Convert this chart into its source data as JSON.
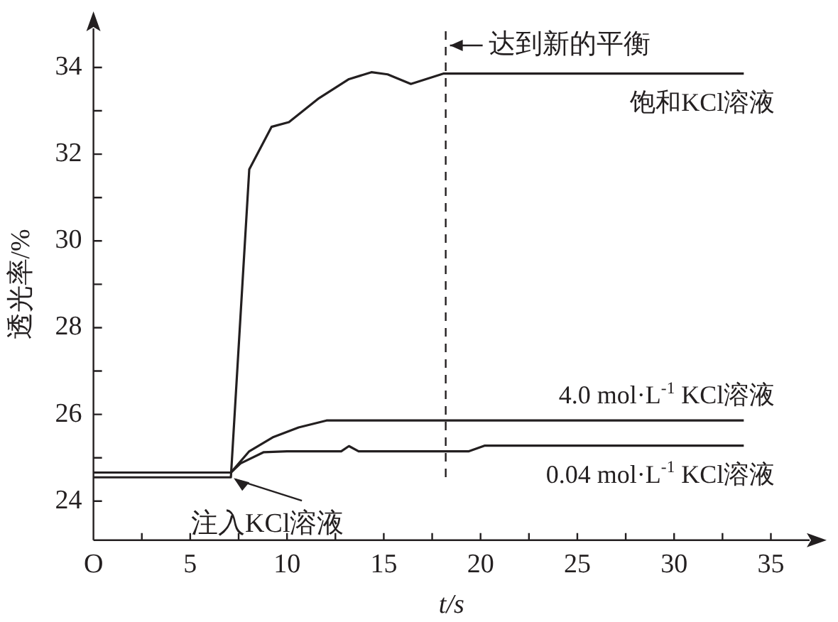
{
  "chart_data": {
    "type": "line",
    "xlabel": "t/s",
    "ylabel": "透光率/%",
    "xlim": [
      0,
      37
    ],
    "ylim": [
      23.1,
      34.9
    ],
    "xticks": [
      {
        "value": 0,
        "label": "O"
      },
      {
        "value": 2.5,
        "label": null
      },
      5,
      {
        "value": 7.5,
        "label": null
      },
      10,
      {
        "value": 12.5,
        "label": null
      },
      15,
      {
        "value": 17.5,
        "label": null
      },
      20,
      {
        "value": 22.5,
        "label": null
      },
      25,
      {
        "value": 27.5,
        "label": null
      },
      30,
      {
        "value": 32.5,
        "label": null
      },
      35
    ],
    "yticks": [
      24,
      {
        "value": 25,
        "label": null
      },
      26,
      {
        "value": 27,
        "label": null
      },
      28,
      {
        "value": 29,
        "label": null
      },
      30,
      {
        "value": 31,
        "label": null
      },
      32,
      {
        "value": 33,
        "label": null
      },
      34
    ],
    "grid": false,
    "legend": false,
    "marker": "none",
    "line_style": "solid",
    "series": [
      {
        "name": "饱和KCl溶液",
        "color": "#231f20",
        "x": [
          0,
          7.1,
          8.05,
          9.2,
          10.1,
          11.65,
          13.2,
          14.36,
          15.2,
          16.4,
          18.1,
          33.6
        ],
        "values": [
          24.55,
          24.55,
          31.65,
          32.63,
          32.74,
          33.29,
          33.73,
          33.89,
          33.84,
          33.62,
          33.86,
          33.86
        ]
      },
      {
        "name": "4.0 mol·L$^{-1}$ KCl溶液",
        "color": "#231f20",
        "x": [
          0,
          7.1,
          8.05,
          9.3,
          10.6,
          12.04,
          33.6
        ],
        "values": [
          24.66,
          24.66,
          25.15,
          25.48,
          25.7,
          25.86,
          25.86
        ]
      },
      {
        "name": "0.04 mol·L$^{-1}$ KCl溶液",
        "color": "#231f20",
        "x": [
          0,
          7.1,
          7.6,
          8.8,
          10,
          12.8,
          13.2,
          13.7,
          19.4,
          20.2,
          33.6
        ],
        "values": [
          24.66,
          24.66,
          24.87,
          25.13,
          25.15,
          25.15,
          25.27,
          25.15,
          25.15,
          25.28,
          25.28
        ]
      }
    ],
    "ref_lines": [
      {
        "axis": "x",
        "value": 18.2,
        "label": "达到新的平衡",
        "line_style": "dashed",
        "color": "#231f20"
      }
    ],
    "annotations": [
      {
        "text": "注入KCl溶液",
        "x": 7.1,
        "y": 24.6
      }
    ]
  }
}
